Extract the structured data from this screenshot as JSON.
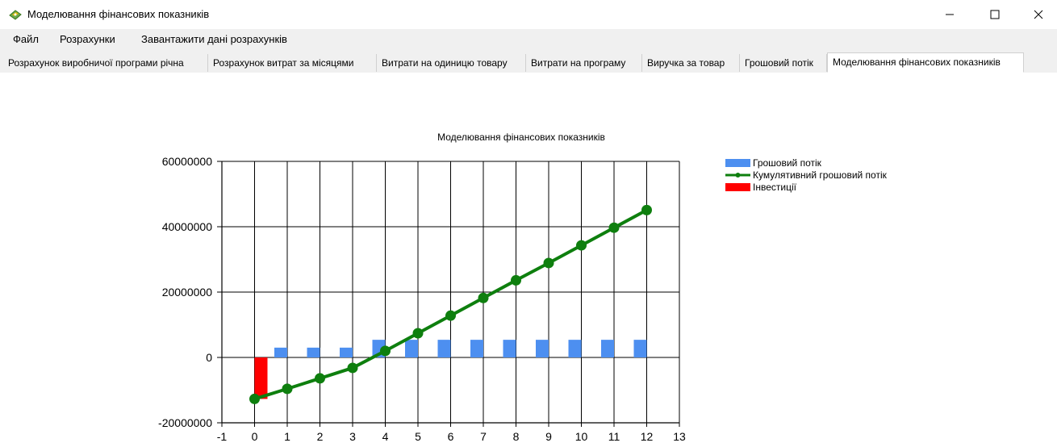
{
  "window": {
    "title": "Моделювання фінансових показників"
  },
  "menu": {
    "items": [
      "Файл",
      "Розрахунки",
      "Завантажити дані розрахунків"
    ]
  },
  "tabs": [
    {
      "label": "Розрахунок виробничої програми річна",
      "active": false
    },
    {
      "label": "Розрахунок витрат за місяцями",
      "active": false
    },
    {
      "label": "Витрати на одиницю товару",
      "active": false
    },
    {
      "label": "Витрати на програму",
      "active": false
    },
    {
      "label": "Виручка за товар",
      "active": false
    },
    {
      "label": "Грошовий потік",
      "active": false
    },
    {
      "label": "Моделювання фінансових показників",
      "active": true
    }
  ],
  "chart_data": {
    "type": "bar",
    "title": "Моделювання фінансових показників",
    "xlabel": "",
    "ylabel": "",
    "xlim": [
      -1,
      13
    ],
    "ylim": [
      -20000000,
      60000000
    ],
    "x_ticks": [
      -1,
      0,
      1,
      2,
      3,
      4,
      5,
      6,
      7,
      8,
      9,
      10,
      11,
      12,
      13
    ],
    "y_ticks": [
      -20000000,
      0,
      20000000,
      40000000,
      60000000
    ],
    "grid": true,
    "legend_position": "top-right",
    "series": [
      {
        "name": "Грошовий потік",
        "type": "bar",
        "color": "#4d8ff0",
        "x": [
          1,
          2,
          3,
          4,
          5,
          6,
          7,
          8,
          9,
          10,
          11,
          12
        ],
        "values": [
          3000000,
          3000000,
          3000000,
          5400000,
          5400000,
          5400000,
          5400000,
          5400000,
          5400000,
          5400000,
          5400000,
          5400000
        ]
      },
      {
        "name": "Кумулятивний грошовий потік",
        "type": "line",
        "color": "#0e7f0e",
        "x": [
          0,
          1,
          2,
          3,
          4,
          5,
          6,
          7,
          8,
          9,
          10,
          11,
          12
        ],
        "values": [
          -12700000,
          -9600000,
          -6400000,
          -3200000,
          2000000,
          7400000,
          12800000,
          18200000,
          23600000,
          28900000,
          34300000,
          39700000,
          45100000
        ]
      },
      {
        "name": "Інвестиції",
        "type": "bar",
        "color": "#ff0000",
        "x": [
          0
        ],
        "values": [
          -12700000
        ]
      }
    ]
  }
}
